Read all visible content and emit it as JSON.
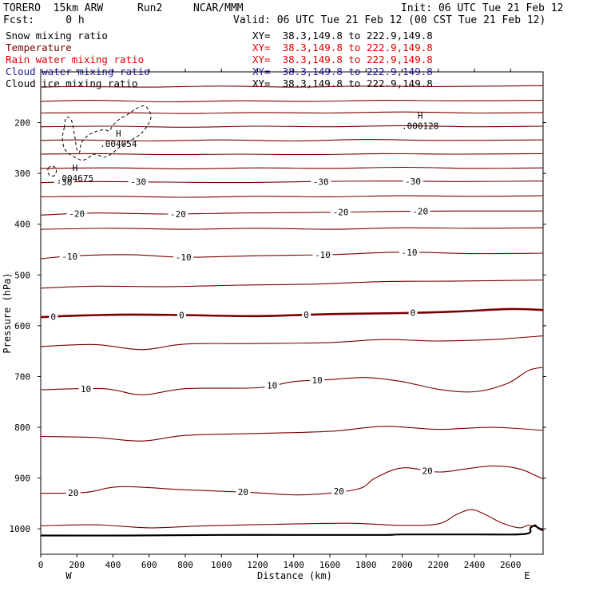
{
  "header": {
    "model": "TORERO  15km ARW",
    "run": "Run2",
    "center": "NCAR/MMM",
    "init": "Init: 06 UTC Tue 21 Feb 12",
    "fcst": "Fcst:     0 h",
    "valid": "Valid: 06 UTC Tue 21 Feb 12 (00 CST Tue 21 Feb 12)"
  },
  "legend": [
    {
      "name": "Snow mixing ratio",
      "color": "#000000",
      "xy": "XY=  38.3,149.8 to 222.9,149.8"
    },
    {
      "name": "Temperature",
      "color": "#7a0000",
      "xy": "XY=  38.3,149.8 to 222.9,149.8"
    },
    {
      "name": "Rain water mixing ratio",
      "color": "#e00000",
      "xy": "XY=  38.3,149.8 to 222.9,149.8"
    },
    {
      "name": "Cloud water mixing ratio",
      "color": "#1a1aa0",
      "xy": "XY=  38.3,149.8 to 222.9,149.8"
    },
    {
      "name": "Cloud ice mixing ratio",
      "color": "#000000",
      "xy": "XY=  38.3,149.8 to 222.9,149.8"
    }
  ],
  "chart_data": {
    "type": "cross-section",
    "xlabel": "Distance (km)",
    "ylabel": "Pressure (hPa)",
    "x_range": [
      0,
      2780
    ],
    "y_range": [
      1050,
      100
    ],
    "x_ticks": [
      0,
      200,
      400,
      600,
      800,
      1000,
      1200,
      1400,
      1600,
      1800,
      2000,
      2200,
      2400,
      2600
    ],
    "y_ticks": [
      200,
      300,
      400,
      500,
      600,
      700,
      800,
      900,
      1000
    ],
    "x_end_labels": {
      "left": "W",
      "right": "E"
    },
    "temperature_color": "#7a0000",
    "freezing_level_label": "0",
    "temperature_isotherms": [
      {
        "pts": [
          [
            0,
            130
          ],
          [
            200,
            129
          ],
          [
            600,
            130
          ],
          [
            1000,
            128
          ],
          [
            1400,
            130
          ],
          [
            1800,
            128
          ],
          [
            2200,
            129
          ],
          [
            2780,
            127
          ]
        ]
      },
      {
        "pts": [
          [
            0,
            158
          ],
          [
            300,
            156
          ],
          [
            700,
            159
          ],
          [
            1100,
            157
          ],
          [
            1500,
            158
          ],
          [
            1900,
            156
          ],
          [
            2300,
            157
          ],
          [
            2780,
            156
          ]
        ]
      },
      {
        "pts": [
          [
            0,
            181
          ],
          [
            400,
            180
          ],
          [
            800,
            182
          ],
          [
            1200,
            180
          ],
          [
            1600,
            181
          ],
          [
            2000,
            179
          ],
          [
            2400,
            181
          ],
          [
            2780,
            180
          ]
        ]
      },
      {
        "pts": [
          [
            0,
            208
          ],
          [
            400,
            207
          ],
          [
            800,
            209
          ],
          [
            1200,
            207
          ],
          [
            1600,
            208
          ],
          [
            2000,
            206
          ],
          [
            2400,
            208
          ],
          [
            2780,
            207
          ]
        ]
      },
      {
        "pts": [
          [
            0,
            235
          ],
          [
            200,
            234
          ],
          [
            600,
            236
          ],
          [
            1000,
            234
          ],
          [
            1400,
            236
          ],
          [
            1800,
            233
          ],
          [
            2200,
            235
          ],
          [
            2780,
            234
          ]
        ]
      },
      {
        "pts": [
          [
            0,
            262
          ],
          [
            300,
            261
          ],
          [
            700,
            263
          ],
          [
            1100,
            262
          ],
          [
            1500,
            263
          ],
          [
            1900,
            261
          ],
          [
            2300,
            262
          ],
          [
            2780,
            261
          ]
        ]
      },
      {
        "pts": [
          [
            0,
            290
          ],
          [
            400,
            289
          ],
          [
            800,
            291
          ],
          [
            1200,
            289
          ],
          [
            1600,
            290
          ],
          [
            2000,
            288
          ],
          [
            2400,
            290
          ],
          [
            2780,
            289
          ]
        ]
      },
      {
        "label": "-30",
        "label_at": [
          130,
          540,
          1550,
          2060
        ],
        "pts": [
          [
            0,
            318
          ],
          [
            300,
            316
          ],
          [
            700,
            317
          ],
          [
            1100,
            318
          ],
          [
            1500,
            316
          ],
          [
            1900,
            315
          ],
          [
            2300,
            316
          ],
          [
            2780,
            315
          ]
        ]
      },
      {
        "pts": [
          [
            0,
            346
          ],
          [
            400,
            345
          ],
          [
            800,
            347
          ],
          [
            1200,
            345
          ],
          [
            1600,
            346
          ],
          [
            2000,
            344
          ],
          [
            2400,
            345
          ],
          [
            2780,
            344
          ]
        ]
      },
      {
        "label": "-20",
        "label_at": [
          200,
          760,
          1660,
          2100
        ],
        "pts": [
          [
            0,
            382
          ],
          [
            300,
            378
          ],
          [
            700,
            380
          ],
          [
            1100,
            378
          ],
          [
            1500,
            377
          ],
          [
            1900,
            375
          ],
          [
            2300,
            374
          ],
          [
            2780,
            374
          ]
        ]
      },
      {
        "pts": [
          [
            0,
            410
          ],
          [
            400,
            408
          ],
          [
            800,
            410
          ],
          [
            1200,
            408
          ],
          [
            1600,
            410
          ],
          [
            2000,
            407
          ],
          [
            2400,
            408
          ],
          [
            2780,
            407
          ]
        ]
      },
      {
        "label": "-10",
        "label_at": [
          160,
          790,
          1560,
          2040
        ],
        "pts": [
          [
            0,
            468
          ],
          [
            200,
            462
          ],
          [
            500,
            460
          ],
          [
            800,
            465
          ],
          [
            1200,
            462
          ],
          [
            1600,
            460
          ],
          [
            2000,
            455
          ],
          [
            2400,
            458
          ],
          [
            2780,
            457
          ]
        ]
      },
      {
        "pts": [
          [
            0,
            526
          ],
          [
            300,
            522
          ],
          [
            700,
            523
          ],
          [
            1100,
            520
          ],
          [
            1500,
            518
          ],
          [
            1900,
            513
          ],
          [
            2300,
            512
          ],
          [
            2780,
            510
          ]
        ]
      },
      {
        "label": "0",
        "label_at": [
          70,
          780,
          1470,
          2060
        ],
        "pts": [
          [
            0,
            583
          ],
          [
            200,
            580
          ],
          [
            500,
            578
          ],
          [
            800,
            579
          ],
          [
            1200,
            581
          ],
          [
            1600,
            577
          ],
          [
            2000,
            575
          ],
          [
            2300,
            572
          ],
          [
            2600,
            567
          ],
          [
            2780,
            569
          ]
        ]
      },
      {
        "pts": [
          [
            0,
            641
          ],
          [
            300,
            637
          ],
          [
            560,
            647
          ],
          [
            800,
            636
          ],
          [
            1200,
            635
          ],
          [
            1600,
            633
          ],
          [
            1900,
            627
          ],
          [
            2200,
            630
          ],
          [
            2500,
            627
          ],
          [
            2780,
            620
          ]
        ]
      },
      {
        "label": "10",
        "label_at": [
          250,
          1280,
          1530
        ],
        "pts": [
          [
            0,
            726
          ],
          [
            350,
            724
          ],
          [
            560,
            736
          ],
          [
            800,
            724
          ],
          [
            1200,
            722
          ],
          [
            1400,
            710
          ],
          [
            1600,
            706
          ],
          [
            1800,
            702
          ],
          [
            2000,
            710
          ],
          [
            2200,
            725
          ],
          [
            2400,
            730
          ],
          [
            2580,
            714
          ],
          [
            2700,
            688
          ],
          [
            2780,
            682
          ]
        ]
      },
      {
        "pts": [
          [
            0,
            818
          ],
          [
            300,
            820
          ],
          [
            560,
            827
          ],
          [
            800,
            816
          ],
          [
            1200,
            812
          ],
          [
            1600,
            808
          ],
          [
            1900,
            798
          ],
          [
            2200,
            804
          ],
          [
            2500,
            800
          ],
          [
            2780,
            806
          ]
        ]
      },
      {
        "label": "20",
        "label_at": [
          180,
          1120,
          1650,
          2140
        ],
        "pts": [
          [
            0,
            930
          ],
          [
            250,
            928
          ],
          [
            440,
            917
          ],
          [
            800,
            923
          ],
          [
            1150,
            928
          ],
          [
            1450,
            933
          ],
          [
            1750,
            922
          ],
          [
            1850,
            900
          ],
          [
            2000,
            880
          ],
          [
            2200,
            888
          ],
          [
            2350,
            882
          ],
          [
            2500,
            876
          ],
          [
            2650,
            882
          ],
          [
            2780,
            902
          ]
        ]
      },
      {
        "pts": [
          [
            0,
            994
          ],
          [
            300,
            992
          ],
          [
            600,
            998
          ],
          [
            900,
            994
          ],
          [
            1300,
            991
          ],
          [
            1700,
            989
          ],
          [
            2000,
            993
          ],
          [
            2200,
            990
          ],
          [
            2300,
            972
          ],
          [
            2380,
            962
          ],
          [
            2450,
            970
          ],
          [
            2550,
            988
          ],
          [
            2650,
            998
          ],
          [
            2700,
            993
          ],
          [
            2780,
            1000
          ]
        ]
      }
    ],
    "terrain": [
      [
        0,
        1013
      ],
      [
        500,
        1013
      ],
      [
        1000,
        1012
      ],
      [
        1500,
        1012
      ],
      [
        1900,
        1012
      ],
      [
        2000,
        1011
      ],
      [
        2400,
        1011
      ],
      [
        2680,
        1010
      ],
      [
        2710,
        998
      ],
      [
        2735,
        993
      ],
      [
        2755,
        999
      ],
      [
        2780,
        1003
      ]
    ],
    "cloud_ice": {
      "maxima": [
        {
          "label": "H",
          "value": ".004054",
          "at": [
            430,
            232
          ]
        },
        {
          "label": "H",
          "value": ".004675",
          "at": [
            190,
            300
          ]
        },
        {
          "label": "H",
          "value": ".000128",
          "at": [
            2100,
            197
          ]
        }
      ],
      "contours": [
        {
          "pts": [
            [
              130,
              210
            ],
            [
              140,
              190
            ],
            [
              170,
              196
            ],
            [
              190,
              230
            ],
            [
              200,
              253
            ],
            [
              215,
              258
            ],
            [
              225,
              240
            ],
            [
              260,
              226
            ],
            [
              300,
              218
            ],
            [
              350,
              214
            ],
            [
              380,
              216
            ],
            [
              400,
              205
            ],
            [
              440,
              192
            ],
            [
              490,
              182
            ],
            [
              530,
              172
            ],
            [
              580,
              168
            ],
            [
              610,
              190
            ],
            [
              560,
              220
            ],
            [
              490,
              236
            ],
            [
              430,
              250
            ],
            [
              390,
              262
            ],
            [
              350,
              268
            ],
            [
              300,
              262
            ],
            [
              260,
              270
            ],
            [
              230,
              274
            ],
            [
              200,
              270
            ],
            [
              160,
              262
            ],
            [
              130,
              250
            ],
            [
              120,
              230
            ],
            [
              130,
              210
            ]
          ]
        },
        {
          "pts": [
            [
              40,
              290
            ],
            [
              60,
              285
            ],
            [
              85,
              291
            ],
            [
              80,
              303
            ],
            [
              55,
              305
            ],
            [
              40,
              298
            ],
            [
              40,
              290
            ]
          ]
        }
      ]
    }
  }
}
